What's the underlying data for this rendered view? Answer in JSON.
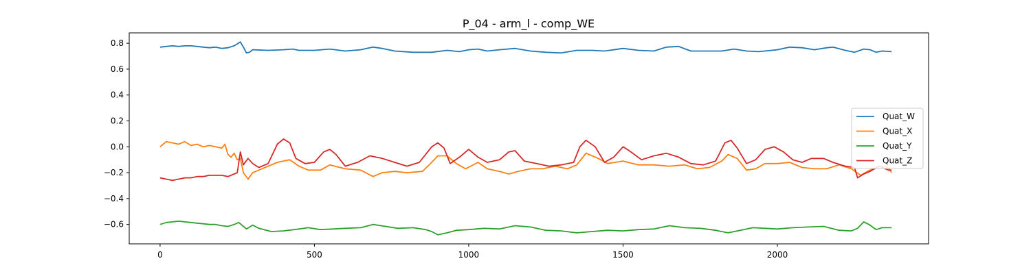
{
  "chart_data": {
    "type": "line",
    "title": "P_04 - arm_l - comp_WE",
    "xlabel": "",
    "ylabel": "",
    "xlim": [
      -100,
      2490
    ],
    "ylim": [
      -0.75,
      0.88
    ],
    "x_ticks": [
      0,
      500,
      1000,
      1500,
      2000
    ],
    "y_ticks": [
      -0.6,
      -0.4,
      -0.2,
      0.0,
      0.2,
      0.4,
      0.6,
      0.8
    ],
    "x_tick_labels": [
      "0",
      "500",
      "1000",
      "1500",
      "2000"
    ],
    "y_tick_labels": [
      "−0.6",
      "−0.4",
      "−0.2",
      "0.0",
      "0.2",
      "0.4",
      "0.6",
      "0.8"
    ],
    "grid": false,
    "legend_position": "center-right",
    "series": [
      {
        "name": "Quat_W",
        "color": "#1f77b4",
        "points": [
          [
            0,
            0.77
          ],
          [
            20,
            0.775
          ],
          [
            40,
            0.78
          ],
          [
            60,
            0.775
          ],
          [
            80,
            0.78
          ],
          [
            100,
            0.78
          ],
          [
            120,
            0.775
          ],
          [
            140,
            0.77
          ],
          [
            160,
            0.765
          ],
          [
            180,
            0.77
          ],
          [
            200,
            0.76
          ],
          [
            220,
            0.765
          ],
          [
            240,
            0.78
          ],
          [
            260,
            0.81
          ],
          [
            270,
            0.77
          ],
          [
            280,
            0.725
          ],
          [
            290,
            0.73
          ],
          [
            300,
            0.75
          ],
          [
            350,
            0.745
          ],
          [
            400,
            0.75
          ],
          [
            430,
            0.755
          ],
          [
            450,
            0.745
          ],
          [
            500,
            0.745
          ],
          [
            550,
            0.755
          ],
          [
            600,
            0.74
          ],
          [
            650,
            0.75
          ],
          [
            690,
            0.77
          ],
          [
            720,
            0.76
          ],
          [
            760,
            0.74
          ],
          [
            820,
            0.73
          ],
          [
            880,
            0.73
          ],
          [
            930,
            0.745
          ],
          [
            970,
            0.735
          ],
          [
            1000,
            0.75
          ],
          [
            1030,
            0.755
          ],
          [
            1060,
            0.74
          ],
          [
            1100,
            0.75
          ],
          [
            1150,
            0.76
          ],
          [
            1200,
            0.74
          ],
          [
            1250,
            0.73
          ],
          [
            1300,
            0.725
          ],
          [
            1350,
            0.745
          ],
          [
            1400,
            0.745
          ],
          [
            1440,
            0.74
          ],
          [
            1500,
            0.76
          ],
          [
            1550,
            0.745
          ],
          [
            1600,
            0.74
          ],
          [
            1640,
            0.77
          ],
          [
            1680,
            0.775
          ],
          [
            1720,
            0.74
          ],
          [
            1760,
            0.74
          ],
          [
            1820,
            0.74
          ],
          [
            1860,
            0.755
          ],
          [
            1900,
            0.74
          ],
          [
            1940,
            0.735
          ],
          [
            2000,
            0.75
          ],
          [
            2040,
            0.77
          ],
          [
            2080,
            0.765
          ],
          [
            2120,
            0.75
          ],
          [
            2160,
            0.765
          ],
          [
            2180,
            0.77
          ],
          [
            2220,
            0.745
          ],
          [
            2250,
            0.73
          ],
          [
            2280,
            0.755
          ],
          [
            2300,
            0.75
          ],
          [
            2320,
            0.73
          ],
          [
            2340,
            0.74
          ],
          [
            2370,
            0.735
          ]
        ]
      },
      {
        "name": "Quat_X",
        "color": "#ff7f0e",
        "points": [
          [
            0,
            0.0
          ],
          [
            20,
            0.04
          ],
          [
            40,
            0.03
          ],
          [
            60,
            0.02
          ],
          [
            80,
            0.04
          ],
          [
            100,
            0.01
          ],
          [
            120,
            0.02
          ],
          [
            140,
            0.0
          ],
          [
            160,
            0.01
          ],
          [
            180,
            0.0
          ],
          [
            200,
            -0.01
          ],
          [
            210,
            0.02
          ],
          [
            220,
            -0.06
          ],
          [
            230,
            -0.08
          ],
          [
            240,
            -0.05
          ],
          [
            250,
            -0.1
          ],
          [
            260,
            -0.09
          ],
          [
            270,
            -0.2
          ],
          [
            285,
            -0.25
          ],
          [
            300,
            -0.2
          ],
          [
            330,
            -0.17
          ],
          [
            380,
            -0.12
          ],
          [
            420,
            -0.1
          ],
          [
            450,
            -0.15
          ],
          [
            480,
            -0.18
          ],
          [
            520,
            -0.18
          ],
          [
            550,
            -0.14
          ],
          [
            600,
            -0.17
          ],
          [
            650,
            -0.18
          ],
          [
            690,
            -0.23
          ],
          [
            720,
            -0.2
          ],
          [
            760,
            -0.19
          ],
          [
            800,
            -0.2
          ],
          [
            850,
            -0.19
          ],
          [
            880,
            -0.12
          ],
          [
            900,
            -0.07
          ],
          [
            930,
            -0.07
          ],
          [
            960,
            -0.13
          ],
          [
            990,
            -0.17
          ],
          [
            1030,
            -0.12
          ],
          [
            1060,
            -0.17
          ],
          [
            1100,
            -0.19
          ],
          [
            1130,
            -0.21
          ],
          [
            1160,
            -0.19
          ],
          [
            1200,
            -0.17
          ],
          [
            1240,
            -0.17
          ],
          [
            1280,
            -0.15
          ],
          [
            1320,
            -0.17
          ],
          [
            1350,
            -0.14
          ],
          [
            1380,
            -0.05
          ],
          [
            1420,
            -0.09
          ],
          [
            1450,
            -0.13
          ],
          [
            1500,
            -0.11
          ],
          [
            1550,
            -0.14
          ],
          [
            1600,
            -0.14
          ],
          [
            1650,
            -0.15
          ],
          [
            1700,
            -0.14
          ],
          [
            1740,
            -0.17
          ],
          [
            1780,
            -0.16
          ],
          [
            1820,
            -0.11
          ],
          [
            1840,
            -0.06
          ],
          [
            1870,
            -0.09
          ],
          [
            1900,
            -0.18
          ],
          [
            1930,
            -0.17
          ],
          [
            1960,
            -0.13
          ],
          [
            2000,
            -0.13
          ],
          [
            2040,
            -0.12
          ],
          [
            2080,
            -0.16
          ],
          [
            2120,
            -0.17
          ],
          [
            2160,
            -0.17
          ],
          [
            2200,
            -0.14
          ],
          [
            2240,
            -0.17
          ],
          [
            2270,
            -0.22
          ],
          [
            2300,
            -0.18
          ],
          [
            2330,
            -0.15
          ],
          [
            2360,
            -0.16
          ],
          [
            2370,
            -0.2
          ]
        ]
      },
      {
        "name": "Quat_Y",
        "color": "#2ca02c",
        "points": [
          [
            0,
            -0.6
          ],
          [
            20,
            -0.585
          ],
          [
            40,
            -0.58
          ],
          [
            60,
            -0.575
          ],
          [
            80,
            -0.58
          ],
          [
            100,
            -0.585
          ],
          [
            120,
            -0.59
          ],
          [
            140,
            -0.595
          ],
          [
            160,
            -0.6
          ],
          [
            180,
            -0.6
          ],
          [
            200,
            -0.61
          ],
          [
            220,
            -0.615
          ],
          [
            240,
            -0.6
          ],
          [
            255,
            -0.585
          ],
          [
            265,
            -0.605
          ],
          [
            280,
            -0.635
          ],
          [
            300,
            -0.605
          ],
          [
            320,
            -0.63
          ],
          [
            360,
            -0.655
          ],
          [
            400,
            -0.65
          ],
          [
            450,
            -0.635
          ],
          [
            480,
            -0.625
          ],
          [
            520,
            -0.64
          ],
          [
            560,
            -0.635
          ],
          [
            600,
            -0.63
          ],
          [
            650,
            -0.625
          ],
          [
            690,
            -0.6
          ],
          [
            730,
            -0.615
          ],
          [
            770,
            -0.63
          ],
          [
            820,
            -0.625
          ],
          [
            860,
            -0.64
          ],
          [
            880,
            -0.655
          ],
          [
            900,
            -0.68
          ],
          [
            930,
            -0.665
          ],
          [
            960,
            -0.645
          ],
          [
            1000,
            -0.64
          ],
          [
            1050,
            -0.63
          ],
          [
            1100,
            -0.635
          ],
          [
            1150,
            -0.61
          ],
          [
            1200,
            -0.62
          ],
          [
            1250,
            -0.645
          ],
          [
            1300,
            -0.65
          ],
          [
            1350,
            -0.665
          ],
          [
            1400,
            -0.655
          ],
          [
            1450,
            -0.645
          ],
          [
            1500,
            -0.65
          ],
          [
            1550,
            -0.64
          ],
          [
            1600,
            -0.635
          ],
          [
            1650,
            -0.61
          ],
          [
            1700,
            -0.625
          ],
          [
            1750,
            -0.63
          ],
          [
            1800,
            -0.645
          ],
          [
            1840,
            -0.665
          ],
          [
            1880,
            -0.645
          ],
          [
            1920,
            -0.625
          ],
          [
            1960,
            -0.63
          ],
          [
            2000,
            -0.635
          ],
          [
            2050,
            -0.625
          ],
          [
            2100,
            -0.62
          ],
          [
            2150,
            -0.615
          ],
          [
            2200,
            -0.645
          ],
          [
            2240,
            -0.65
          ],
          [
            2260,
            -0.63
          ],
          [
            2280,
            -0.58
          ],
          [
            2300,
            -0.605
          ],
          [
            2320,
            -0.64
          ],
          [
            2340,
            -0.625
          ],
          [
            2370,
            -0.625
          ]
        ]
      },
      {
        "name": "Quat_Z",
        "color": "#d62728",
        "points": [
          [
            0,
            -0.24
          ],
          [
            20,
            -0.25
          ],
          [
            40,
            -0.26
          ],
          [
            60,
            -0.25
          ],
          [
            80,
            -0.24
          ],
          [
            100,
            -0.24
          ],
          [
            120,
            -0.23
          ],
          [
            140,
            -0.23
          ],
          [
            160,
            -0.22
          ],
          [
            180,
            -0.22
          ],
          [
            200,
            -0.22
          ],
          [
            220,
            -0.23
          ],
          [
            240,
            -0.21
          ],
          [
            250,
            -0.2
          ],
          [
            260,
            -0.04
          ],
          [
            270,
            -0.14
          ],
          [
            285,
            -0.09
          ],
          [
            300,
            -0.13
          ],
          [
            320,
            -0.16
          ],
          [
            350,
            -0.13
          ],
          [
            380,
            0.02
          ],
          [
            400,
            0.06
          ],
          [
            420,
            0.03
          ],
          [
            440,
            -0.09
          ],
          [
            470,
            -0.13
          ],
          [
            500,
            -0.12
          ],
          [
            530,
            -0.04
          ],
          [
            550,
            -0.02
          ],
          [
            570,
            -0.06
          ],
          [
            600,
            -0.15
          ],
          [
            640,
            -0.12
          ],
          [
            680,
            -0.07
          ],
          [
            720,
            -0.09
          ],
          [
            760,
            -0.12
          ],
          [
            800,
            -0.15
          ],
          [
            840,
            -0.12
          ],
          [
            880,
            0.0
          ],
          [
            900,
            0.03
          ],
          [
            920,
            -0.01
          ],
          [
            940,
            -0.13
          ],
          [
            970,
            -0.08
          ],
          [
            1000,
            -0.02
          ],
          [
            1030,
            -0.08
          ],
          [
            1060,
            -0.12
          ],
          [
            1100,
            -0.1
          ],
          [
            1130,
            -0.04
          ],
          [
            1150,
            -0.03
          ],
          [
            1180,
            -0.11
          ],
          [
            1220,
            -0.13
          ],
          [
            1260,
            -0.15
          ],
          [
            1300,
            -0.14
          ],
          [
            1340,
            -0.12
          ],
          [
            1360,
            0.0
          ],
          [
            1380,
            0.05
          ],
          [
            1410,
            0.0
          ],
          [
            1440,
            -0.12
          ],
          [
            1470,
            -0.08
          ],
          [
            1500,
            0.0
          ],
          [
            1520,
            -0.03
          ],
          [
            1560,
            -0.1
          ],
          [
            1600,
            -0.07
          ],
          [
            1640,
            -0.05
          ],
          [
            1680,
            -0.08
          ],
          [
            1720,
            -0.13
          ],
          [
            1760,
            -0.14
          ],
          [
            1800,
            -0.11
          ],
          [
            1830,
            0.03
          ],
          [
            1850,
            0.05
          ],
          [
            1870,
            -0.01
          ],
          [
            1900,
            -0.13
          ],
          [
            1930,
            -0.1
          ],
          [
            1960,
            -0.02
          ],
          [
            1990,
            0.0
          ],
          [
            2020,
            -0.04
          ],
          [
            2050,
            -0.1
          ],
          [
            2080,
            -0.12
          ],
          [
            2110,
            -0.09
          ],
          [
            2150,
            -0.09
          ],
          [
            2180,
            -0.12
          ],
          [
            2220,
            -0.15
          ],
          [
            2250,
            -0.16
          ],
          [
            2260,
            -0.24
          ],
          [
            2280,
            -0.21
          ],
          [
            2300,
            -0.19
          ],
          [
            2330,
            -0.15
          ],
          [
            2360,
            -0.18
          ],
          [
            2370,
            -0.18
          ]
        ]
      }
    ]
  }
}
